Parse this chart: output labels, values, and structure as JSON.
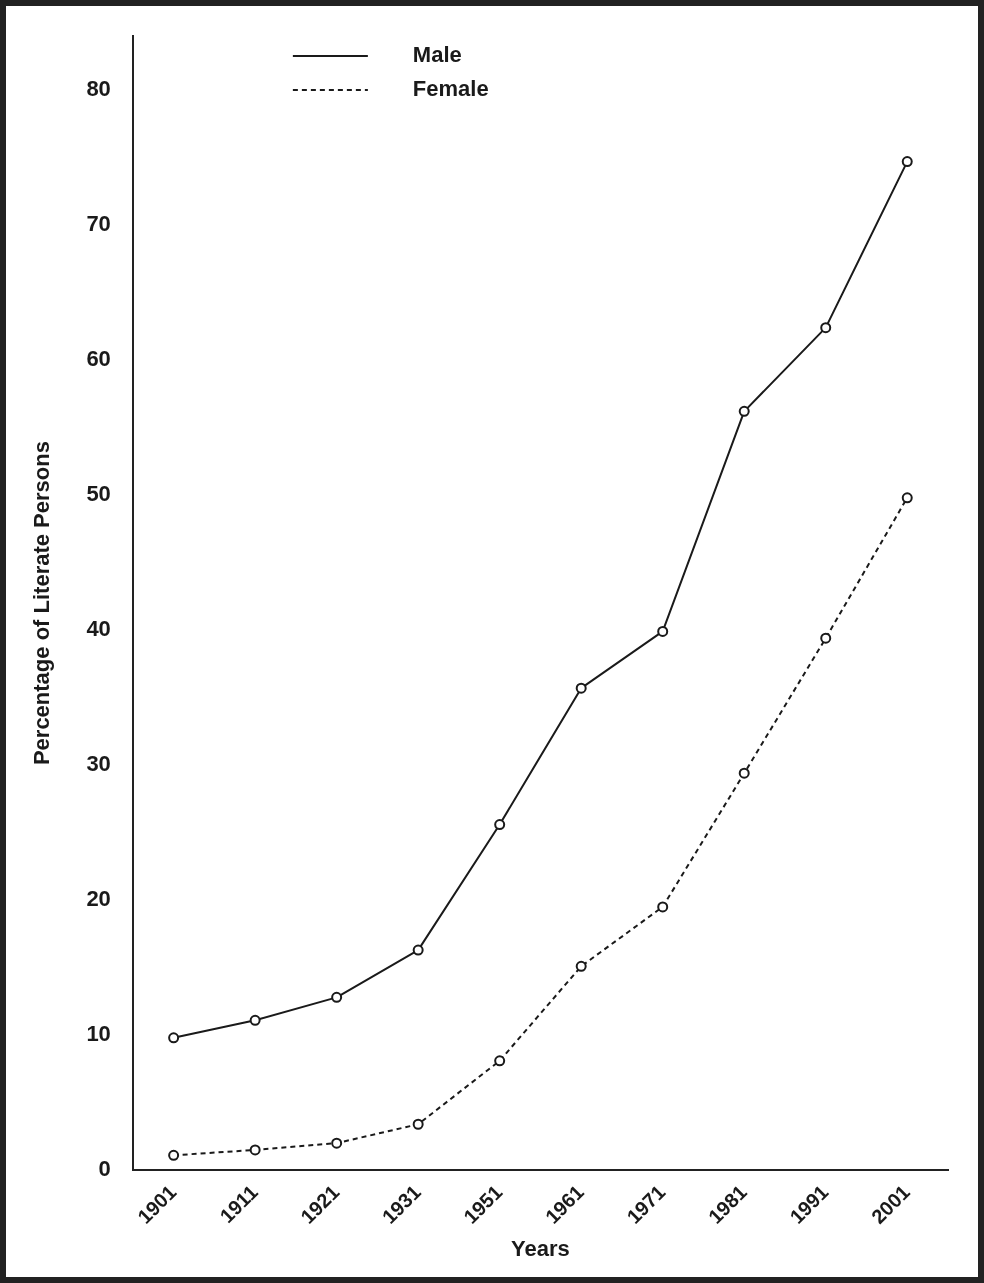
{
  "chart_data": {
    "type": "line",
    "xlabel": "Years",
    "ylabel": "Percentage of Literate Persons",
    "categories": [
      "1901",
      "1911",
      "1921",
      "1931",
      "1951",
      "1961",
      "1971",
      "1981",
      "1991",
      "2001"
    ],
    "series": [
      {
        "name": "Male",
        "color": "#1a1a1a",
        "line_style": "solid",
        "values": [
          9.8,
          11.1,
          12.8,
          16.3,
          25.6,
          35.7,
          39.9,
          56.2,
          62.4,
          74.7
        ]
      },
      {
        "name": "Female",
        "color": "#1a1a1a",
        "line_style": "dashed",
        "values": [
          1.1,
          1.5,
          2.0,
          3.4,
          8.1,
          15.1,
          19.5,
          29.4,
          39.4,
          49.8
        ]
      }
    ],
    "ylim": [
      0,
      84
    ],
    "yticks": [
      0,
      10,
      20,
      30,
      40,
      50,
      60,
      70,
      80
    ],
    "grid": false,
    "legend": "top left",
    "marker": "circle"
  }
}
